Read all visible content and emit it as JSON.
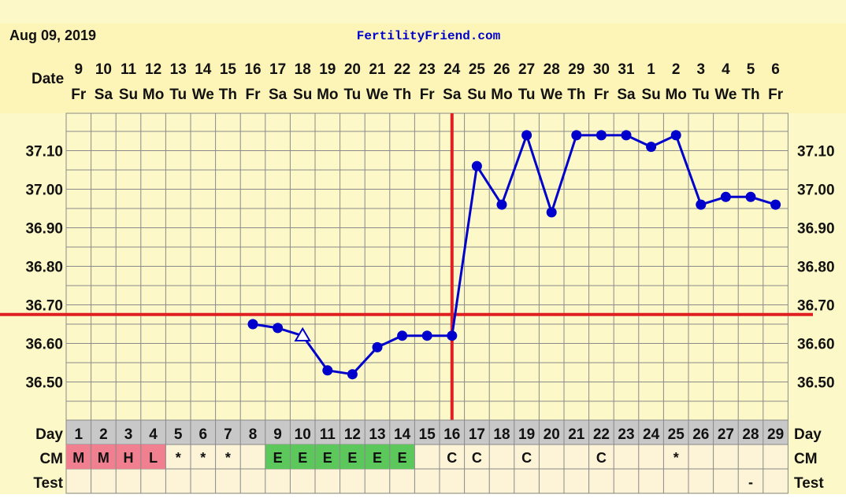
{
  "header": {
    "date": "Aug 09, 2019",
    "site": "FertilityFriend.com"
  },
  "labels": {
    "date": "Date",
    "day": "Day",
    "cm": "CM",
    "test": "Test"
  },
  "chart_data": {
    "type": "line",
    "dates": [
      "9",
      "10",
      "11",
      "12",
      "13",
      "14",
      "15",
      "16",
      "17",
      "18",
      "19",
      "20",
      "21",
      "22",
      "23",
      "24",
      "25",
      "26",
      "27",
      "28",
      "29",
      "30",
      "31",
      "1",
      "2",
      "3",
      "4",
      "5",
      "6"
    ],
    "weekdays": [
      "Fr",
      "Sa",
      "Su",
      "Mo",
      "Tu",
      "We",
      "Th",
      "Fr",
      "Sa",
      "Su",
      "Mo",
      "Tu",
      "We",
      "Th",
      "Fr",
      "Sa",
      "Su",
      "Mo",
      "Tu",
      "We",
      "Th",
      "Fr",
      "Sa",
      "Su",
      "Mo",
      "Tu",
      "We",
      "Th",
      "Fr"
    ],
    "days": [
      "1",
      "2",
      "3",
      "4",
      "5",
      "6",
      "7",
      "8",
      "9",
      "10",
      "11",
      "12",
      "13",
      "14",
      "15",
      "16",
      "17",
      "18",
      "19",
      "20",
      "21",
      "22",
      "23",
      "24",
      "25",
      "26",
      "27",
      "28",
      "29"
    ],
    "y_ticks": [
      "37.10",
      "37.00",
      "36.90",
      "36.80",
      "36.70",
      "36.60",
      "36.50"
    ],
    "ylim": [
      36.42,
      37.2
    ],
    "temperatures": [
      null,
      null,
      null,
      null,
      null,
      null,
      null,
      36.65,
      36.64,
      36.62,
      36.53,
      36.52,
      36.59,
      36.62,
      36.62,
      36.62,
      37.06,
      36.96,
      37.14,
      36.94,
      37.14,
      37.14,
      37.14,
      37.11,
      37.14,
      36.96,
      36.98,
      36.98,
      36.96
    ],
    "markers": [
      "dot",
      "dot",
      "dot",
      "dot",
      "dot",
      "dot",
      "dot",
      "dot",
      "dot",
      "triangle",
      "dot",
      "dot",
      "dot",
      "dot",
      "dot",
      "dot",
      "dot",
      "dot",
      "dot",
      "dot",
      "dot",
      "dot",
      "dot",
      "dot",
      "dot",
      "dot",
      "dot",
      "dot",
      "dot"
    ],
    "coverline": 36.675,
    "ovulation_day": 16,
    "cm": [
      "M",
      "M",
      "H",
      "L",
      "*",
      "*",
      "*",
      "",
      "E",
      "E",
      "E",
      "E",
      "E",
      "E",
      "",
      "C",
      "C",
      "",
      "C",
      "",
      "",
      "C",
      "",
      "",
      "*",
      "",
      "",
      "",
      ""
    ],
    "cm_colors": {
      "M": "#f08090",
      "H": "#f08090",
      "L": "#f08090",
      "E": "#5cc85c"
    },
    "test": [
      "",
      "",
      "",
      "",
      "",
      "",
      "",
      "",
      "",
      "",
      "",
      "",
      "",
      "",
      "",
      "",
      "",
      "",
      "",
      "",
      "",
      "",
      "",
      "",
      "",
      "",
      "",
      "-",
      ""
    ],
    "colors": {
      "line": "#0000cc",
      "coverline": "#e02020",
      "grid": "#8a8a8a",
      "background": "#fdf8c8",
      "header_bg": "#fdf4b8",
      "day_row_bg": "#c8c8c8",
      "cm_row_bg": "#fdf4d8",
      "site": "#0000cc"
    }
  }
}
